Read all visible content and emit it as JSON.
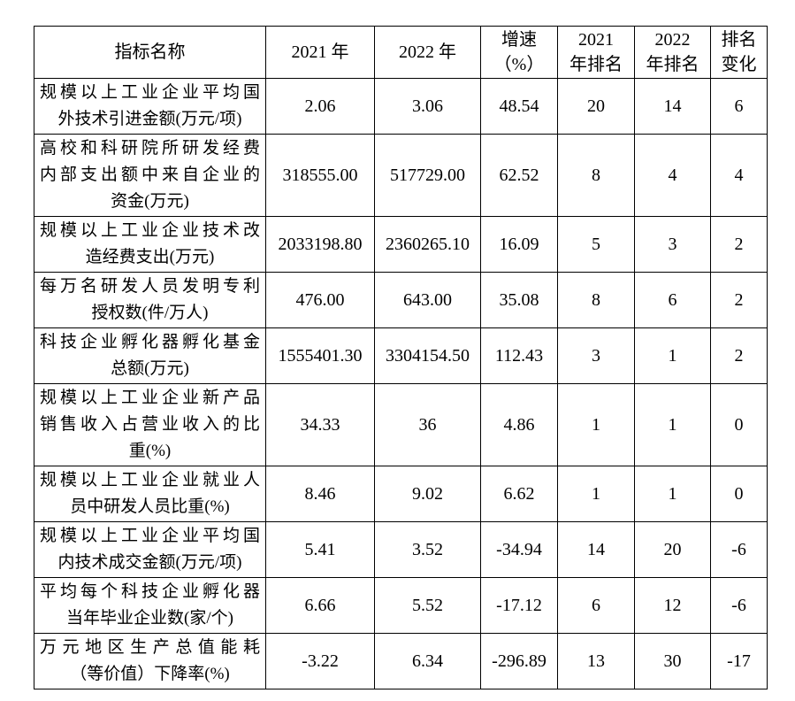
{
  "table": {
    "headers": {
      "indicator": [
        "指标名称"
      ],
      "y2021": [
        "2021 年"
      ],
      "y2022": [
        "2022 年"
      ],
      "growth": [
        "增速",
        "（%）"
      ],
      "rank2021": [
        "2021",
        "年排名"
      ],
      "rank2022": [
        "2022",
        "年排名"
      ],
      "rank_change": [
        "排名",
        "变化"
      ]
    },
    "rows": [
      {
        "indicator_lines": [
          "规模以上工业企业平均国",
          "外技术引进金额(万元/项)"
        ],
        "y2021": "2.06",
        "y2022": "3.06",
        "growth": "48.54",
        "rank2021": "20",
        "rank2022": "14",
        "rank_change": "6"
      },
      {
        "indicator_lines": [
          "高校和科研院所研发经费",
          "内部支出额中来自企业的",
          "资金(万元)"
        ],
        "y2021": "318555.00",
        "y2022": "517729.00",
        "growth": "62.52",
        "rank2021": "8",
        "rank2022": "4",
        "rank_change": "4"
      },
      {
        "indicator_lines": [
          "规模以上工业企业技术改",
          "造经费支出(万元)"
        ],
        "y2021": "2033198.80",
        "y2022": "2360265.10",
        "growth": "16.09",
        "rank2021": "5",
        "rank2022": "3",
        "rank_change": "2"
      },
      {
        "indicator_lines": [
          "每万名研发人员发明专利",
          "授权数(件/万人)"
        ],
        "y2021": "476.00",
        "y2022": "643.00",
        "growth": "35.08",
        "rank2021": "8",
        "rank2022": "6",
        "rank_change": "2"
      },
      {
        "indicator_lines": [
          "科技企业孵化器孵化基金",
          "总额(万元)"
        ],
        "y2021": "1555401.30",
        "y2022": "3304154.50",
        "growth": "112.43",
        "rank2021": "3",
        "rank2022": "1",
        "rank_change": "2"
      },
      {
        "indicator_lines": [
          "规模以上工业企业新产品",
          "销售收入占营业收入的比",
          "重(%)"
        ],
        "y2021": "34.33",
        "y2022": "36",
        "growth": "4.86",
        "rank2021": "1",
        "rank2022": "1",
        "rank_change": "0"
      },
      {
        "indicator_lines": [
          "规模以上工业企业就业人",
          "员中研发人员比重(%)"
        ],
        "y2021": "8.46",
        "y2022": "9.02",
        "growth": "6.62",
        "rank2021": "1",
        "rank2022": "1",
        "rank_change": "0"
      },
      {
        "indicator_lines": [
          "规模以上工业企业平均国",
          "内技术成交金额(万元/项)"
        ],
        "y2021": "5.41",
        "y2022": "3.52",
        "growth": "-34.94",
        "rank2021": "14",
        "rank2022": "20",
        "rank_change": "-6"
      },
      {
        "indicator_lines": [
          "平均每个科技企业孵化器",
          "当年毕业企业数(家/个)"
        ],
        "y2021": "6.66",
        "y2022": "5.52",
        "growth": "-17.12",
        "rank2021": "6",
        "rank2022": "12",
        "rank_change": "-6"
      },
      {
        "indicator_lines": [
          "万元地区生产总值能耗",
          "（等价值）下降率(%)"
        ],
        "y2021": "-3.22",
        "y2022": "6.34",
        "growth": "-296.89",
        "rank2021": "13",
        "rank2022": "30",
        "rank_change": "-17"
      }
    ]
  }
}
